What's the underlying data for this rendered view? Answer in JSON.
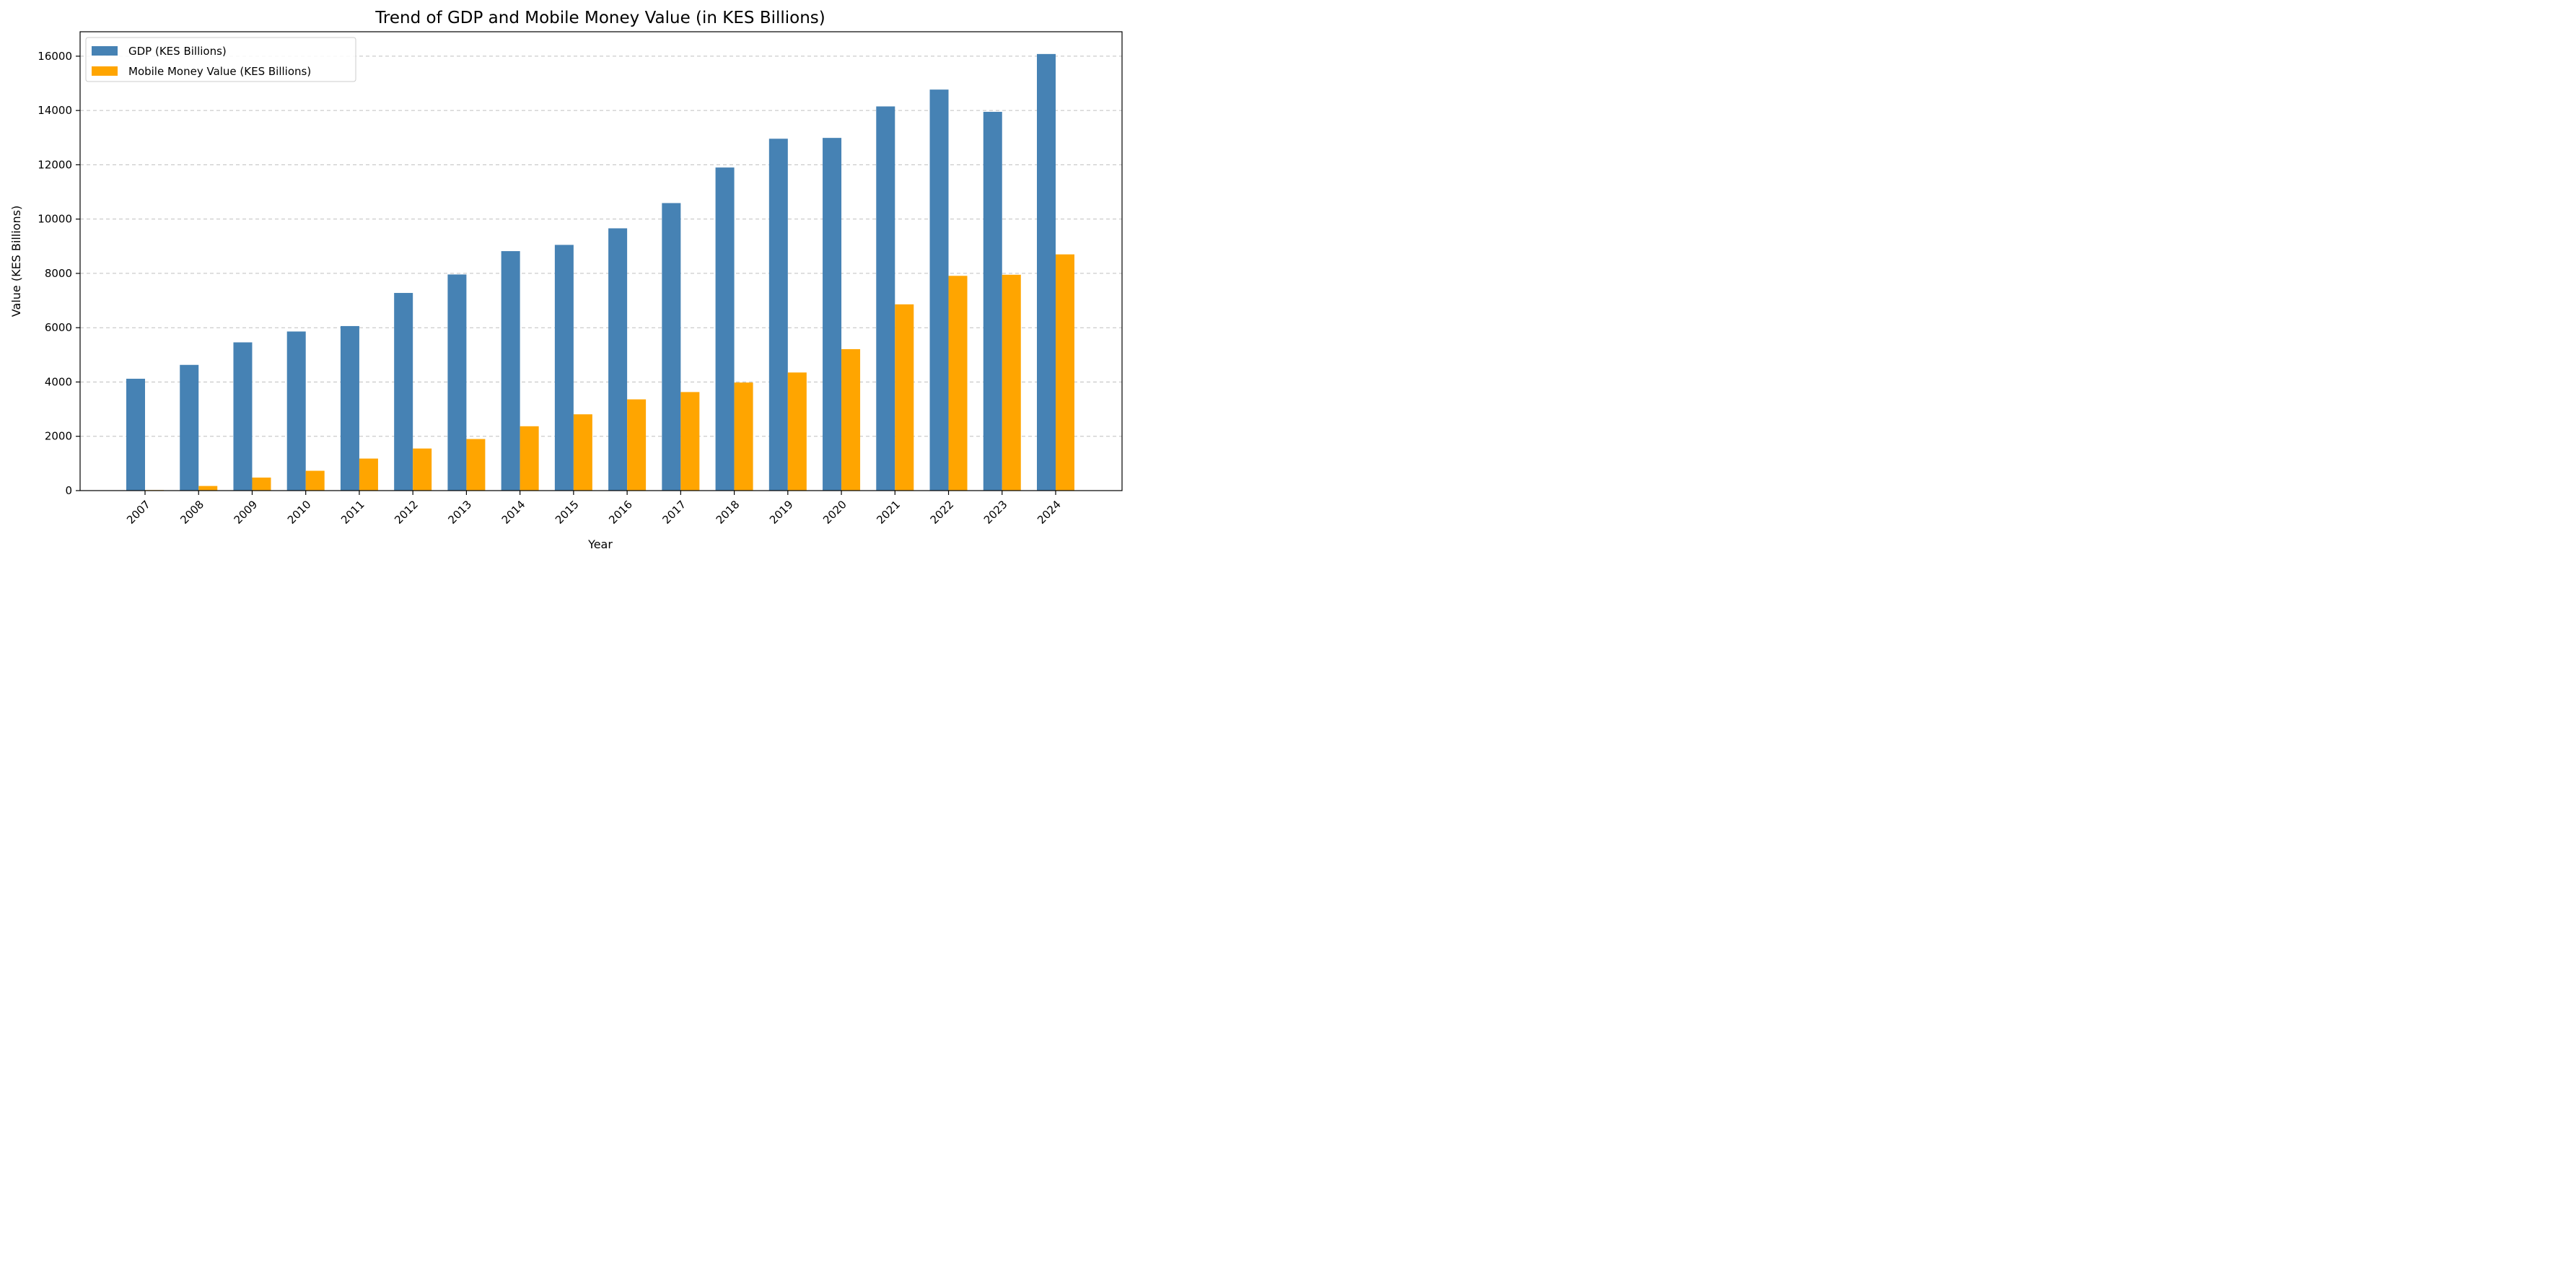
{
  "chart_data": {
    "type": "bar",
    "title": "Trend of GDP and Mobile Money Value (in KES Billions)",
    "xlabel": "Year",
    "ylabel": "Value (KES Billions)",
    "categories": [
      "2007",
      "2008",
      "2009",
      "2010",
      "2011",
      "2012",
      "2013",
      "2014",
      "2015",
      "2016",
      "2017",
      "2018",
      "2019",
      "2020",
      "2021",
      "2022",
      "2023",
      "2024"
    ],
    "series": [
      {
        "name": "GDP (KES Billions)",
        "color": "#4682b4",
        "values": [
          4120,
          4630,
          5460,
          5860,
          6060,
          7280,
          7960,
          8820,
          9050,
          9660,
          10590,
          11900,
          12960,
          12990,
          14150,
          14770,
          13950,
          16080
        ]
      },
      {
        "name": "Mobile Money Value (KES Billions)",
        "color": "#ffa500",
        "values": [
          20,
          170,
          480,
          730,
          1180,
          1550,
          1900,
          2370,
          2810,
          3360,
          3630,
          3980,
          4350,
          5210,
          6860,
          7910,
          7950,
          8700
        ]
      }
    ],
    "ylim": [
      0,
      16900
    ],
    "yticks": [
      0,
      2000,
      4000,
      6000,
      8000,
      10000,
      12000,
      14000,
      16000
    ],
    "grid": "y-dashed",
    "legend_position": "top-left"
  }
}
